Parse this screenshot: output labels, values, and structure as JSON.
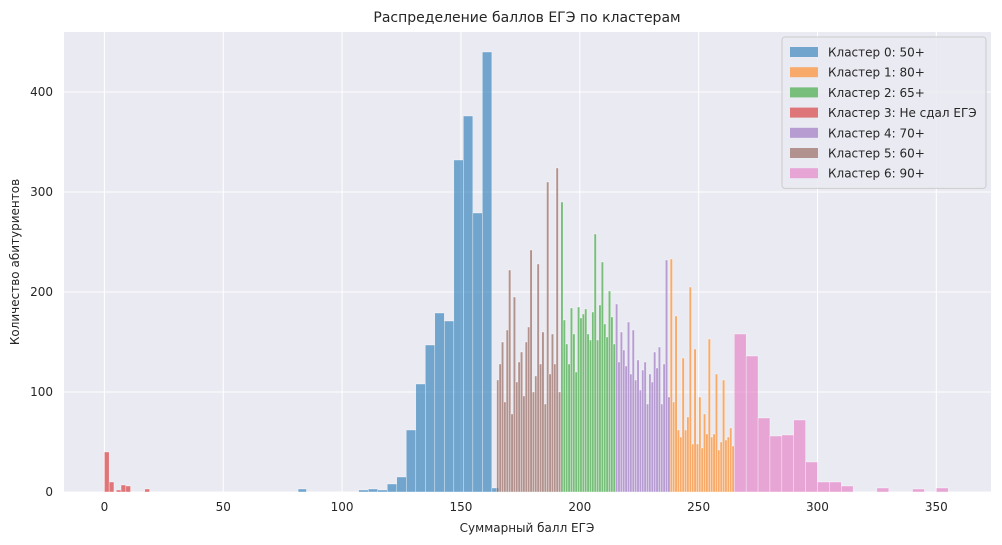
{
  "chart_data": {
    "type": "bar",
    "subtype": "histogram",
    "title": "Распределение баллов ЕГЭ по кластерам",
    "xlabel": "Суммарный балл ЕГЭ",
    "ylabel": "Количество абитуриентов",
    "xlim": [
      -17,
      373
    ],
    "ylim": [
      0,
      460
    ],
    "x_ticks": [
      0,
      50,
      100,
      150,
      200,
      250,
      300,
      350
    ],
    "y_ticks": [
      0,
      100,
      200,
      300,
      400
    ],
    "grid": true,
    "legend_position": "top-right",
    "series": [
      {
        "name": "Кластер 0: 50+",
        "color": "#1f77b4",
        "bins": [
          [
            81.5,
            85,
            3
          ],
          [
            107,
            111,
            2
          ],
          [
            111,
            115,
            3
          ],
          [
            115,
            119,
            2
          ],
          [
            119,
            123,
            8
          ],
          [
            123,
            127,
            15
          ],
          [
            127,
            131,
            62
          ],
          [
            131,
            135,
            108
          ],
          [
            135,
            139,
            147
          ],
          [
            139,
            143,
            179
          ],
          [
            143,
            147,
            171
          ],
          [
            147,
            151,
            332
          ],
          [
            151,
            155,
            376
          ],
          [
            155,
            159,
            279
          ],
          [
            159,
            163,
            440
          ],
          [
            163,
            166,
            4
          ]
        ]
      },
      {
        "name": "Кластер 1: 80+",
        "color": "#ff7f0e",
        "bins": [
          [
            238,
            239,
            233
          ],
          [
            239,
            240,
            90
          ],
          [
            240,
            241,
            176
          ],
          [
            241,
            242,
            62
          ],
          [
            242,
            243,
            55
          ],
          [
            243,
            244,
            134
          ],
          [
            244,
            245,
            62
          ],
          [
            245,
            246,
            75
          ],
          [
            246,
            247,
            205
          ],
          [
            247,
            248,
            48
          ],
          [
            248,
            249,
            143
          ],
          [
            249,
            250,
            48
          ],
          [
            250,
            251,
            95
          ],
          [
            251,
            252,
            44
          ],
          [
            252,
            253,
            78
          ],
          [
            253,
            254,
            58
          ],
          [
            254,
            255,
            153
          ],
          [
            255,
            256,
            55
          ],
          [
            256,
            257,
            58
          ],
          [
            257,
            258,
            118
          ],
          [
            258,
            259,
            42
          ],
          [
            259,
            260,
            50
          ],
          [
            260,
            261,
            112
          ],
          [
            261,
            262,
            52
          ],
          [
            262,
            263,
            55
          ],
          [
            263,
            264,
            64
          ],
          [
            264,
            265,
            46
          ]
        ]
      },
      {
        "name": "Кластер 2: 65+",
        "color": "#2ca02c",
        "bins": [
          [
            192,
            193,
            290
          ],
          [
            193,
            194,
            172
          ],
          [
            194,
            195,
            148
          ],
          [
            195,
            196,
            128
          ],
          [
            196,
            197,
            184
          ],
          [
            197,
            198,
            158
          ],
          [
            198,
            199,
            120
          ],
          [
            199,
            200,
            185
          ],
          [
            200,
            201,
            174
          ],
          [
            201,
            202,
            178
          ],
          [
            202,
            203,
            183
          ],
          [
            203,
            204,
            158
          ],
          [
            204,
            205,
            152
          ],
          [
            205,
            206,
            180
          ],
          [
            206,
            207,
            258
          ],
          [
            207,
            208,
            152
          ],
          [
            208,
            209,
            187
          ],
          [
            209,
            210,
            230
          ],
          [
            210,
            211,
            168
          ],
          [
            211,
            212,
            155
          ],
          [
            212,
            213,
            201
          ],
          [
            213,
            214,
            175
          ],
          [
            214,
            215,
            148
          ]
        ]
      },
      {
        "name": "Кластер 3: Не сдал ЕГЭ",
        "color": "#d62728",
        "bins": [
          [
            0,
            2,
            40
          ],
          [
            2,
            4,
            10
          ],
          [
            5,
            7,
            2
          ],
          [
            7,
            9,
            7
          ],
          [
            9,
            11,
            6
          ],
          [
            17,
            19,
            3
          ]
        ]
      },
      {
        "name": "Кластер 4: 70+",
        "color": "#9467bd",
        "bins": [
          [
            215,
            216,
            188
          ],
          [
            216,
            217,
            130
          ],
          [
            217,
            218,
            160
          ],
          [
            218,
            219,
            142
          ],
          [
            219,
            220,
            126
          ],
          [
            220,
            221,
            170
          ],
          [
            221,
            222,
            118
          ],
          [
            222,
            223,
            162
          ],
          [
            223,
            224,
            112
          ],
          [
            224,
            225,
            132
          ],
          [
            225,
            226,
            102
          ],
          [
            226,
            227,
            122
          ],
          [
            227,
            228,
            130
          ],
          [
            228,
            229,
            88
          ],
          [
            229,
            230,
            118
          ],
          [
            230,
            231,
            110
          ],
          [
            231,
            232,
            140
          ],
          [
            232,
            233,
            124
          ],
          [
            233,
            234,
            145
          ],
          [
            234,
            235,
            88
          ],
          [
            235,
            236,
            128
          ],
          [
            236,
            237,
            232
          ],
          [
            237,
            238,
            95
          ]
        ]
      },
      {
        "name": "Кластер 5: 60+",
        "color": "#8c564b",
        "bins": [
          [
            165,
            166,
            112
          ],
          [
            166,
            167,
            128
          ],
          [
            167,
            168,
            150
          ],
          [
            168,
            169,
            90
          ],
          [
            169,
            170,
            162
          ],
          [
            170,
            171,
            222
          ],
          [
            171,
            172,
            78
          ],
          [
            172,
            173,
            195
          ],
          [
            173,
            174,
            110
          ],
          [
            174,
            175,
            130
          ],
          [
            175,
            176,
            140
          ],
          [
            176,
            177,
            96
          ],
          [
            177,
            178,
            150
          ],
          [
            178,
            179,
            165
          ],
          [
            179,
            180,
            242
          ],
          [
            180,
            181,
            100
          ],
          [
            181,
            182,
            116
          ],
          [
            182,
            183,
            228
          ],
          [
            183,
            184,
            128
          ],
          [
            184,
            185,
            160
          ],
          [
            185,
            186,
            88
          ],
          [
            186,
            187,
            310
          ],
          [
            187,
            188,
            118
          ],
          [
            188,
            189,
            158
          ],
          [
            189,
            190,
            128
          ],
          [
            190,
            191,
            324
          ],
          [
            191,
            192,
            100
          ]
        ]
      },
      {
        "name": "Кластер 6: 90+",
        "color": "#e377c2",
        "bins": [
          [
            265,
            270,
            158
          ],
          [
            270,
            275,
            136
          ],
          [
            275,
            280,
            74
          ],
          [
            280,
            285,
            56
          ],
          [
            285,
            290,
            57
          ],
          [
            290,
            295,
            72
          ],
          [
            295,
            300,
            30
          ],
          [
            300,
            305,
            10
          ],
          [
            305,
            310,
            10
          ],
          [
            310,
            315,
            6
          ],
          [
            325,
            330,
            4
          ],
          [
            340,
            345,
            3
          ],
          [
            350,
            355,
            4
          ]
        ]
      }
    ]
  }
}
